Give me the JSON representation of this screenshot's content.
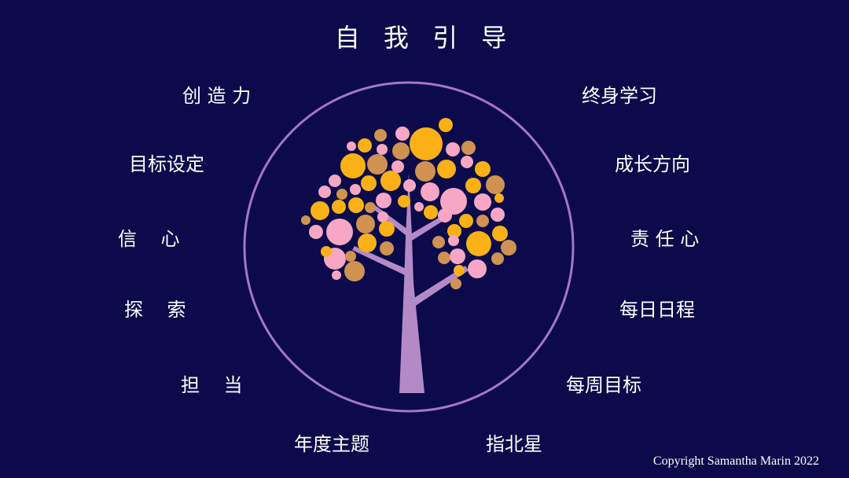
{
  "title": "自 我 引 导",
  "left_labels": [
    "创 造 力",
    "目标设定",
    "信    心",
    "探    索",
    "担    当"
  ],
  "right_labels": [
    "终身学习",
    "成长方向",
    "责 任 心",
    "每日日程",
    "每周目标"
  ],
  "bottom_labels": [
    "年度主题",
    "指北星"
  ],
  "copyright": "Copyright Samantha Marin 2022",
  "colors": {
    "background": "#0b0a4a",
    "ring": "#a774c8",
    "trunk": "#b48ac6",
    "leaf_gold": "#fbb116",
    "leaf_pink": "#f7a6c4",
    "leaf_tan": "#cf9251",
    "text": "#ffffff"
  }
}
